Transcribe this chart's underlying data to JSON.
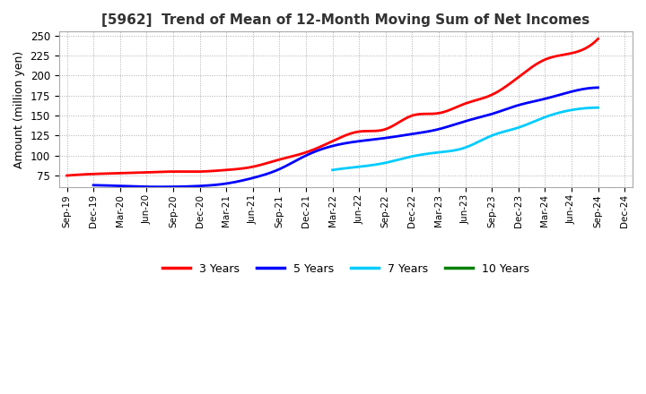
{
  "title": "[5962]  Trend of Mean of 12-Month Moving Sum of Net Incomes",
  "ylabel": "Amount (million yen)",
  "background_color": "#ffffff",
  "plot_bg_color": "#ffffff",
  "grid_color": "#999999",
  "ylim": [
    60,
    255
  ],
  "yticks": [
    75,
    100,
    125,
    150,
    175,
    200,
    225,
    250
  ],
  "x_labels": [
    "Sep-19",
    "Dec-19",
    "Mar-20",
    "Jun-20",
    "Sep-20",
    "Dec-20",
    "Mar-21",
    "Jun-21",
    "Sep-21",
    "Dec-21",
    "Mar-22",
    "Jun-22",
    "Sep-22",
    "Dec-22",
    "Mar-23",
    "Jun-23",
    "Sep-23",
    "Dec-23",
    "Mar-24",
    "Jun-24",
    "Sep-24",
    "Dec-24"
  ],
  "series": {
    "3 Years": {
      "color": "#ff0000",
      "data_x": [
        0,
        1,
        2,
        3,
        4,
        5,
        6,
        7,
        8,
        9,
        10,
        11,
        12,
        13,
        14,
        15,
        16,
        17,
        18,
        19,
        20
      ],
      "data_y": [
        75,
        77,
        78,
        79,
        80,
        80,
        82,
        86,
        95,
        104,
        118,
        130,
        133,
        150,
        153,
        165,
        176,
        198,
        220,
        228,
        246
      ]
    },
    "5 Years": {
      "color": "#0000ff",
      "data_x": [
        1,
        2,
        3,
        4,
        5,
        6,
        7,
        8,
        9,
        10,
        11,
        12,
        13,
        14,
        15,
        16,
        17,
        18,
        19,
        20
      ],
      "data_y": [
        63,
        62,
        61,
        61,
        62,
        65,
        72,
        83,
        100,
        112,
        118,
        122,
        127,
        133,
        143,
        152,
        163,
        171,
        180,
        185
      ]
    },
    "7 Years": {
      "color": "#00ccff",
      "data_x": [
        10,
        11,
        12,
        13,
        14,
        15,
        16,
        17,
        18,
        19,
        20
      ],
      "data_y": [
        82,
        86,
        91,
        99,
        104,
        110,
        125,
        135,
        148,
        157,
        160
      ]
    },
    "10 Years": {
      "color": "#008000",
      "data_x": [],
      "data_y": []
    }
  },
  "legend_labels": [
    "3 Years",
    "5 Years",
    "7 Years",
    "10 Years"
  ],
  "legend_colors": [
    "#ff0000",
    "#0000ff",
    "#00ccff",
    "#008000"
  ]
}
